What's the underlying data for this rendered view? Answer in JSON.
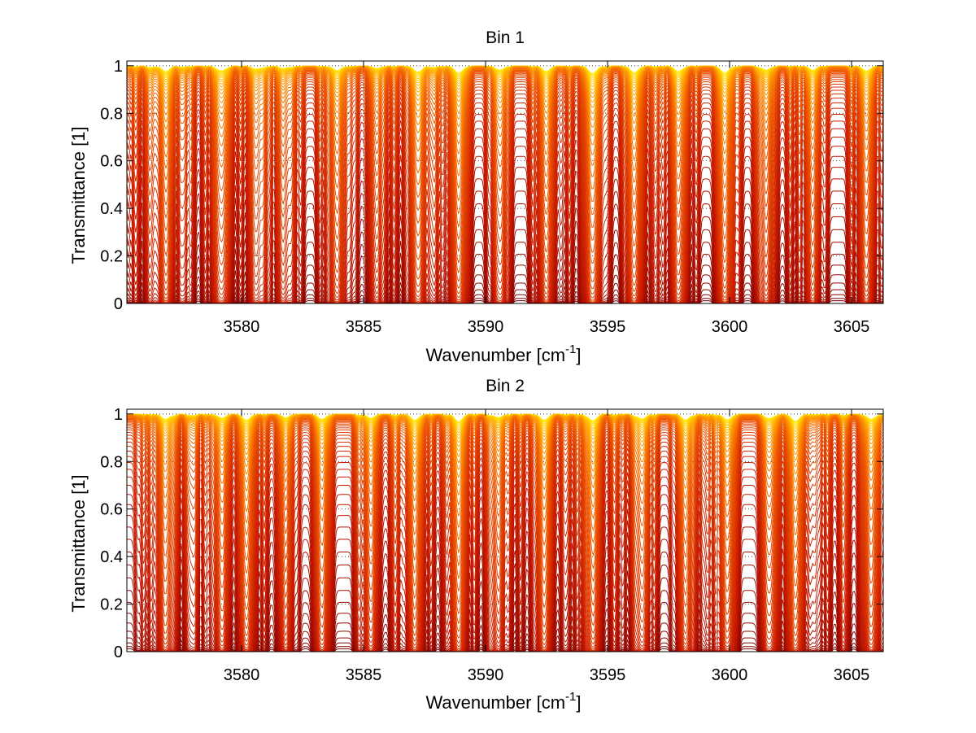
{
  "figure": {
    "background": "#ffffff"
  },
  "colormap": "autumn-to-darkred",
  "chart_data": [
    {
      "type": "line",
      "title": "Bin 1",
      "xlabel": "Wavenumber [cm",
      "xlabel_superscript": "-1",
      "xlabel_suffix": "]",
      "ylabel": "Transmittance [1]",
      "xlim": [
        3575.3,
        3606.3
      ],
      "ylim": [
        0,
        1.02
      ],
      "xticks": [
        3580,
        3585,
        3590,
        3595,
        3600,
        3605
      ],
      "yticks": [
        0,
        0.2,
        0.4,
        0.6,
        0.8,
        1
      ],
      "ytick_labels": [
        "0",
        "0.2",
        "0.4",
        "0.6",
        "0.8",
        "1"
      ],
      "grid": true,
      "grid_style": "dotted",
      "series_count": 60,
      "series_description": "transmittance spectra for increasing path length, from ~1 (yellow) down to ~0 (dark red)",
      "absorption_lines": [
        {
          "center": 3576.9,
          "depth": 0.55
        },
        {
          "center": 3579.2,
          "depth": 0.45
        },
        {
          "center": 3580.6,
          "depth": 0.3
        },
        {
          "center": 3581.7,
          "depth": 0.25
        },
        {
          "center": 3583.9,
          "depth": 0.4
        },
        {
          "center": 3585.5,
          "depth": 0.2
        },
        {
          "center": 3587.2,
          "depth": 0.55
        },
        {
          "center": 3588.9,
          "depth": 0.7
        },
        {
          "center": 3590.6,
          "depth": 0.3
        },
        {
          "center": 3592.5,
          "depth": 0.5
        },
        {
          "center": 3594.4,
          "depth": 0.7
        },
        {
          "center": 3596.1,
          "depth": 0.65
        },
        {
          "center": 3597.9,
          "depth": 0.55
        },
        {
          "center": 3599.8,
          "depth": 0.7
        },
        {
          "center": 3601.5,
          "depth": 0.35
        },
        {
          "center": 3603.4,
          "depth": 0.35
        },
        {
          "center": 3605.6,
          "depth": 0.45
        }
      ],
      "representative_series": [
        {
          "x": [
            3576,
            3580,
            3585,
            3589,
            3590,
            3594.4,
            3596.1,
            3599.8,
            3605,
            3606.3
          ],
          "y": [
            0.96,
            0.94,
            0.95,
            0.66,
            0.93,
            0.62,
            0.69,
            0.62,
            0.92,
            0.95
          ]
        },
        {
          "x": [
            3576,
            3580,
            3585,
            3589,
            3590,
            3594.4,
            3596.1,
            3599.8,
            3605,
            3606.3
          ],
          "y": [
            0.8,
            0.76,
            0.78,
            0.35,
            0.76,
            0.26,
            0.35,
            0.27,
            0.73,
            0.78
          ]
        },
        {
          "x": [
            3576,
            3580,
            3585,
            3589,
            3590,
            3594.4,
            3596.1,
            3599.8,
            3605,
            3606.3
          ],
          "y": [
            0.45,
            0.4,
            0.43,
            0.1,
            0.42,
            0.07,
            0.11,
            0.07,
            0.38,
            0.46
          ]
        },
        {
          "x": [
            3576,
            3580,
            3585,
            3589,
            3590,
            3594.4,
            3596.1,
            3599.8,
            3605,
            3606.3
          ],
          "y": [
            0.1,
            0.08,
            0.09,
            0.02,
            0.09,
            0.01,
            0.02,
            0.01,
            0.08,
            0.1
          ]
        }
      ]
    },
    {
      "type": "line",
      "title": "Bin 2",
      "xlabel": "Wavenumber [cm",
      "xlabel_superscript": "-1",
      "xlabel_suffix": "]",
      "ylabel": "Transmittance [1]",
      "xlim": [
        3575.3,
        3606.3
      ],
      "ylim": [
        0,
        1.02
      ],
      "xticks": [
        3580,
        3585,
        3590,
        3595,
        3600,
        3605
      ],
      "yticks": [
        0,
        0.2,
        0.4,
        0.6,
        0.8,
        1
      ],
      "ytick_labels": [
        "0",
        "0.2",
        "0.4",
        "0.6",
        "0.8",
        "1"
      ],
      "grid": true,
      "grid_style": "dotted",
      "series_count": 60,
      "series_description": "transmittance spectra for increasing path length, from ~1 (yellow) down to ~0 (dark red)",
      "absorption_lines": [
        {
          "center": 3576.9,
          "depth": 0.45
        },
        {
          "center": 3579.2,
          "depth": 0.35
        },
        {
          "center": 3580.2,
          "depth": 0.6
        },
        {
          "center": 3581.8,
          "depth": 0.3
        },
        {
          "center": 3583.3,
          "depth": 0.5
        },
        {
          "center": 3585.3,
          "depth": 0.4
        },
        {
          "center": 3587.1,
          "depth": 0.55
        },
        {
          "center": 3588.9,
          "depth": 0.7
        },
        {
          "center": 3590.5,
          "depth": 0.3
        },
        {
          "center": 3592.4,
          "depth": 0.5
        },
        {
          "center": 3594.4,
          "depth": 0.6
        },
        {
          "center": 3596.4,
          "depth": 0.45
        },
        {
          "center": 3598.2,
          "depth": 0.55
        },
        {
          "center": 3599.9,
          "depth": 0.55
        },
        {
          "center": 3601.6,
          "depth": 0.35
        },
        {
          "center": 3602.7,
          "depth": 0.7
        },
        {
          "center": 3605.8,
          "depth": 0.5
        }
      ],
      "representative_series": [
        {
          "x": [
            3576,
            3580.2,
            3585,
            3589,
            3590,
            3594.4,
            3596,
            3602.7,
            3605,
            3606.3
          ],
          "y": [
            0.96,
            0.72,
            0.95,
            0.7,
            0.93,
            0.74,
            0.94,
            0.66,
            0.93,
            0.95
          ]
        },
        {
          "x": [
            3576,
            3580.2,
            3585,
            3589,
            3590,
            3594.4,
            3596,
            3602.7,
            3605,
            3606.3
          ],
          "y": [
            0.8,
            0.4,
            0.72,
            0.32,
            0.76,
            0.38,
            0.78,
            0.25,
            0.76,
            0.8
          ]
        },
        {
          "x": [
            3576,
            3580.2,
            3585,
            3589,
            3590,
            3594.4,
            3596,
            3602.7,
            3605,
            3606.3
          ],
          "y": [
            0.45,
            0.13,
            0.38,
            0.09,
            0.42,
            0.12,
            0.44,
            0.07,
            0.4,
            0.47
          ]
        },
        {
          "x": [
            3576,
            3580.2,
            3585,
            3589,
            3590,
            3594.4,
            3596,
            3602.7,
            3605,
            3606.3
          ],
          "y": [
            0.1,
            0.03,
            0.08,
            0.02,
            0.09,
            0.03,
            0.1,
            0.01,
            0.09,
            0.1
          ]
        }
      ]
    }
  ]
}
